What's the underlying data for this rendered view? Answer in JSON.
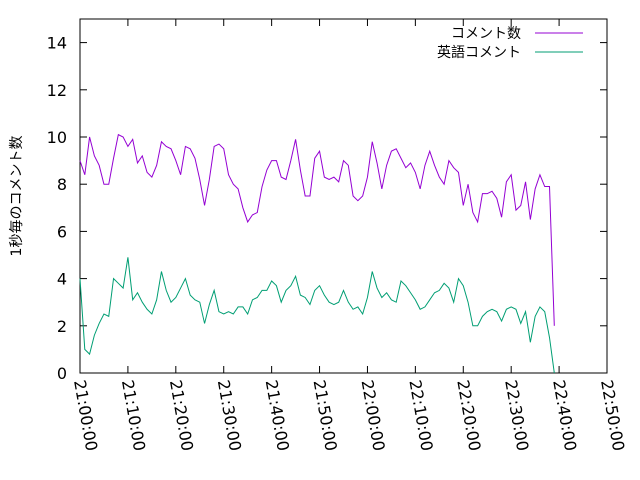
{
  "chart_data": {
    "type": "line",
    "ylabel": "1秒毎のコメント数",
    "xlabel": "",
    "ylim": [
      0,
      15
    ],
    "yticks": [
      0,
      2,
      4,
      6,
      8,
      10,
      12,
      14
    ],
    "xlim": [
      "21:00:00",
      "22:50:00"
    ],
    "xticks": [
      "21:00:00",
      "21:10:00",
      "21:20:00",
      "21:30:00",
      "21:40:00",
      "21:50:00",
      "22:00:00",
      "22:10:00",
      "22:20:00",
      "22:30:00",
      "22:40:00",
      "22:50:00"
    ],
    "grid": false,
    "legend_position": "top-right",
    "x_step_minutes": 1,
    "series": [
      {
        "name": "コメント数",
        "color": "#9400d3",
        "values": [
          9.0,
          8.4,
          10.0,
          9.2,
          8.8,
          8.0,
          8.0,
          9.1,
          10.1,
          10.0,
          9.6,
          9.9,
          8.9,
          9.2,
          8.5,
          8.3,
          8.8,
          9.8,
          9.6,
          9.5,
          9.0,
          8.4,
          9.6,
          9.5,
          9.1,
          8.2,
          7.1,
          8.2,
          9.6,
          9.7,
          9.5,
          8.4,
          8.0,
          7.8,
          7.0,
          6.4,
          6.7,
          6.8,
          7.9,
          8.6,
          9.0,
          9.0,
          8.3,
          8.2,
          9.0,
          9.9,
          8.6,
          7.5,
          7.5,
          9.1,
          9.4,
          8.3,
          8.2,
          8.3,
          8.1,
          9.0,
          8.8,
          7.5,
          7.3,
          7.5,
          8.3,
          9.8,
          8.9,
          7.8,
          8.8,
          9.4,
          9.5,
          9.1,
          8.7,
          8.9,
          8.5,
          7.8,
          8.8,
          9.4,
          8.8,
          8.3,
          8.0,
          9.0,
          8.7,
          8.5,
          7.1,
          8.0,
          6.8,
          6.4,
          7.6,
          7.6,
          7.7,
          7.4,
          6.6,
          8.1,
          8.4,
          6.9,
          7.1,
          8.1,
          6.5,
          7.8,
          8.4,
          7.9,
          7.9,
          2.0
        ]
      },
      {
        "name": "英語コメント",
        "color": "#009e73",
        "values": [
          4.0,
          1.0,
          0.8,
          1.6,
          2.1,
          2.5,
          2.4,
          4.0,
          3.8,
          3.6,
          4.9,
          3.1,
          3.4,
          3.0,
          2.7,
          2.5,
          3.1,
          4.3,
          3.5,
          3.0,
          3.2,
          3.6,
          4.0,
          3.3,
          3.1,
          3.0,
          2.1,
          2.9,
          3.5,
          2.6,
          2.5,
          2.6,
          2.5,
          2.8,
          2.8,
          2.5,
          3.1,
          3.2,
          3.5,
          3.5,
          3.9,
          3.7,
          3.0,
          3.5,
          3.7,
          4.1,
          3.3,
          3.2,
          2.9,
          3.5,
          3.7,
          3.3,
          3.0,
          2.9,
          3.0,
          3.5,
          3.0,
          2.7,
          2.8,
          2.5,
          3.2,
          4.3,
          3.6,
          3.2,
          3.4,
          3.1,
          3.0,
          3.9,
          3.7,
          3.4,
          3.1,
          2.7,
          2.8,
          3.1,
          3.4,
          3.5,
          3.8,
          3.6,
          3.0,
          4.0,
          3.7,
          3.0,
          2.0,
          2.0,
          2.4,
          2.6,
          2.7,
          2.6,
          2.2,
          2.7,
          2.8,
          2.7,
          2.1,
          2.6,
          1.3,
          2.4,
          2.8,
          2.6,
          1.5,
          0.0
        ]
      }
    ]
  }
}
